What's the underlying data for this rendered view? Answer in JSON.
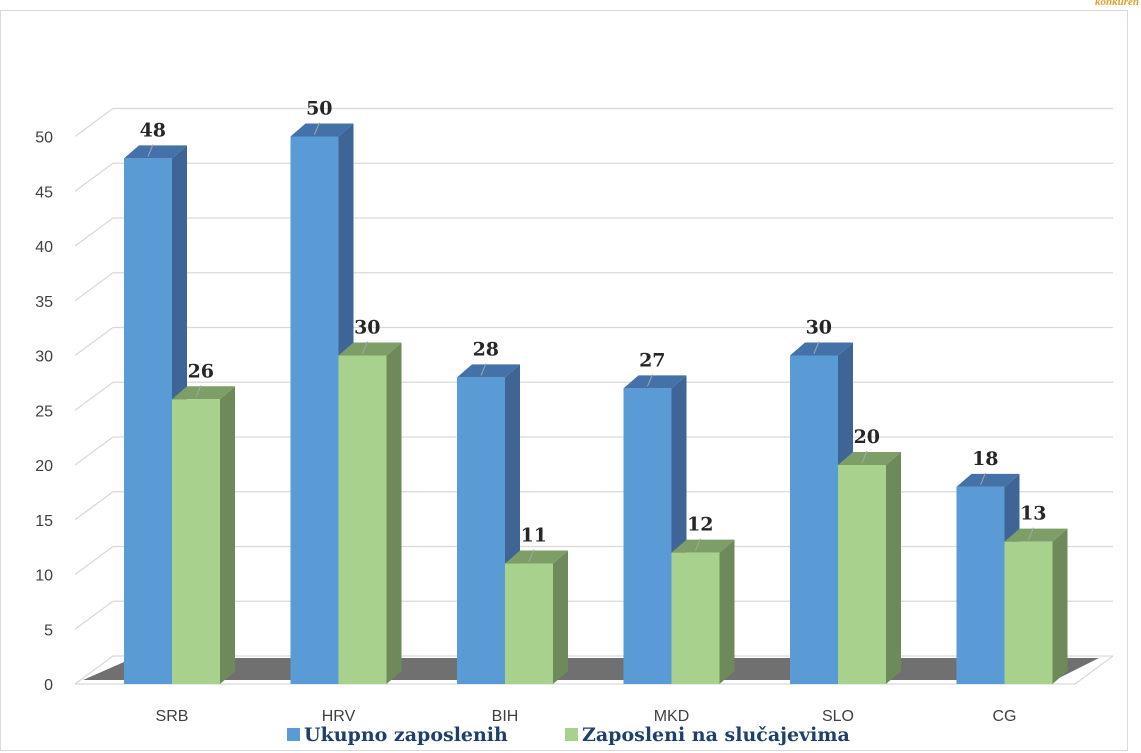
{
  "corner_text": "konkuren",
  "colors": {
    "series1_front": "#5b9bd5",
    "series1_top": "#4472a8",
    "series1_side": "#3e6596",
    "series2_front": "#a9d18e",
    "series2_top": "#7e9e67",
    "series2_side": "#6f8a5a",
    "grid": "#d9d9d9",
    "floor": "#404040"
  },
  "chart_data": {
    "type": "bar",
    "style": "3d-clustered-column",
    "categories": [
      "SRB",
      "HRV",
      "BIH",
      "MKD",
      "SLO",
      "CG"
    ],
    "series": [
      {
        "name": "Ukupno zaposlenih",
        "values": [
          48,
          50,
          28,
          27,
          30,
          18
        ]
      },
      {
        "name": "Zaposleni na slučajevima",
        "values": [
          26,
          30,
          11,
          12,
          20,
          13
        ]
      }
    ],
    "ylim": [
      0,
      50
    ],
    "yticks": [
      0,
      5,
      10,
      15,
      20,
      25,
      30,
      35,
      40,
      45,
      50
    ],
    "grid": true,
    "legend": "bottom",
    "data_labels": true
  }
}
